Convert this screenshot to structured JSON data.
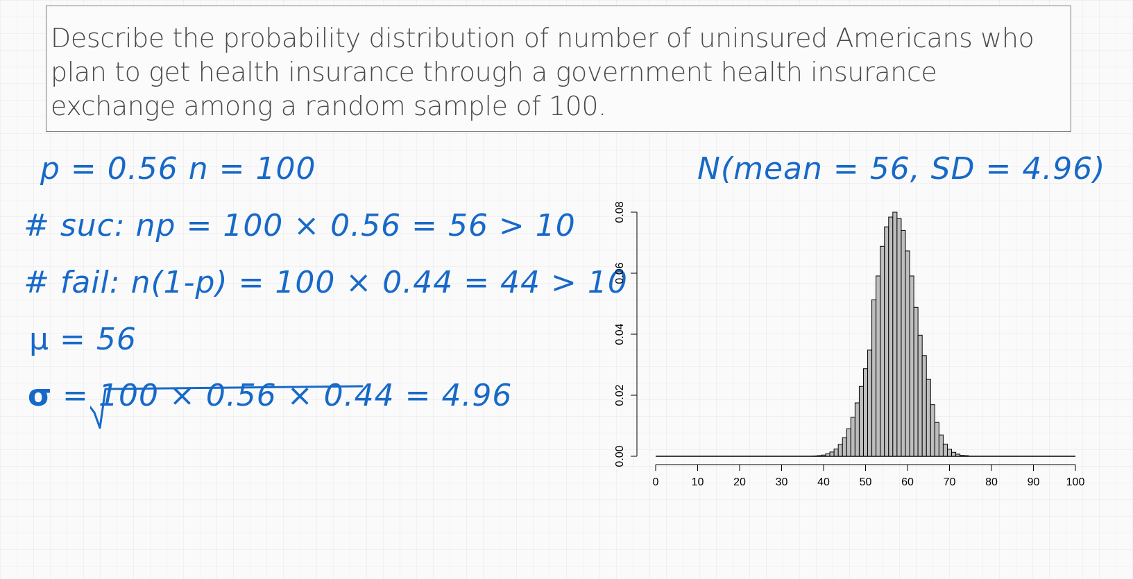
{
  "question": "Describe the probability distribution of number of uninsured Americans who plan to get health insurance through a government health insurance exchange among a random sample of 100.",
  "notes": {
    "p_n": "p = 0.56    n = 100",
    "successes": "# suc: np = 100 × 0.56 = 56 > 10",
    "failures": "# fail: n(1-p) = 100 × 0.44 = 44 > 10",
    "mu_symbol": "μ",
    "mu_value": "= 56",
    "sigma_symbol": "σ",
    "sigma_eq": "=",
    "sigma_expr": "100 × 0.56 × 0.44 = 4.96",
    "normal_label": "N(mean = 56, SD = 4.96)"
  },
  "colors": {
    "ink": "#1769c9",
    "bar_fill": "#bebebe",
    "bar_stroke": "#000000"
  },
  "chart_data": {
    "type": "bar",
    "title": "",
    "xlabel": "",
    "ylabel": "",
    "xlim": [
      0,
      100
    ],
    "ylim": [
      0,
      0.08
    ],
    "x_ticks": [
      0,
      10,
      20,
      30,
      40,
      50,
      60,
      70,
      80,
      90,
      100
    ],
    "y_ticks": [
      0.0,
      0.02,
      0.04,
      0.06,
      0.08
    ],
    "y_tick_labels": [
      "0.00",
      "0.02",
      "0.04",
      "0.06",
      "0.08"
    ],
    "grid": false,
    "x": [
      38,
      39,
      40,
      41,
      42,
      43,
      44,
      45,
      46,
      47,
      48,
      49,
      50,
      51,
      52,
      53,
      54,
      55,
      56,
      57,
      58,
      59,
      60,
      61,
      62,
      63,
      64,
      65,
      66,
      67,
      68,
      69,
      70,
      71,
      72,
      73,
      74
    ],
    "values": [
      0.0001,
      0.0002,
      0.0004,
      0.0008,
      0.0014,
      0.0024,
      0.0039,
      0.0061,
      0.009,
      0.0128,
      0.0175,
      0.0229,
      0.0287,
      0.0348,
      0.0513,
      0.0591,
      0.0688,
      0.0752,
      0.0784,
      0.08,
      0.0779,
      0.074,
      0.0673,
      0.0591,
      0.0488,
      0.0397,
      0.033,
      0.0252,
      0.0169,
      0.0111,
      0.007,
      0.004,
      0.0023,
      0.0013,
      0.0007,
      0.0003,
      0.0002
    ]
  }
}
